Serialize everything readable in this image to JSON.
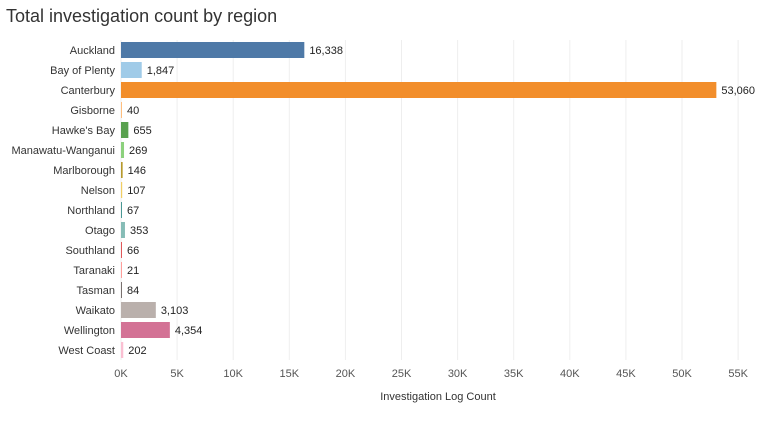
{
  "chart_data": {
    "type": "bar",
    "orientation": "horizontal",
    "title": "Total investigation count by region",
    "xlabel": "Investigation Log Count",
    "ylabel": "",
    "xlim": [
      0,
      59000
    ],
    "grid": true,
    "ticks": [
      0,
      5000,
      10000,
      15000,
      20000,
      25000,
      30000,
      35000,
      40000,
      45000,
      50000,
      55000
    ],
    "tick_labels": [
      "0K",
      "5K",
      "10K",
      "15K",
      "20K",
      "25K",
      "30K",
      "35K",
      "40K",
      "45K",
      "50K",
      "55K"
    ],
    "categories": [
      "Auckland",
      "Bay of Plenty",
      "Canterbury",
      "Gisborne",
      "Hawke's Bay",
      "Manawatu-Wanganui",
      "Marlborough",
      "Nelson",
      "Northland",
      "Otago",
      "Southland",
      "Taranaki",
      "Tasman",
      "Waikato",
      "Wellington",
      "West Coast"
    ],
    "values": [
      16338,
      1847,
      53060,
      40,
      655,
      269,
      146,
      107,
      67,
      353,
      66,
      21,
      84,
      3103,
      4354,
      202
    ],
    "value_labels": [
      "16,338",
      "1,847",
      "53,060",
      "40",
      "655",
      "269",
      "146",
      "107",
      "67",
      "353",
      "66",
      "21",
      "84",
      "3,103",
      "4,354",
      "202"
    ],
    "colors": [
      "#4e79a7",
      "#a0cbe8",
      "#f28e2b",
      "#ffbe7d",
      "#59a14f",
      "#8cd17d",
      "#b6992d",
      "#f1ce63",
      "#499894",
      "#86bcb6",
      "#e15759",
      "#ff9d9a",
      "#79706e",
      "#bab0ac",
      "#d37295",
      "#fabfd2"
    ]
  }
}
